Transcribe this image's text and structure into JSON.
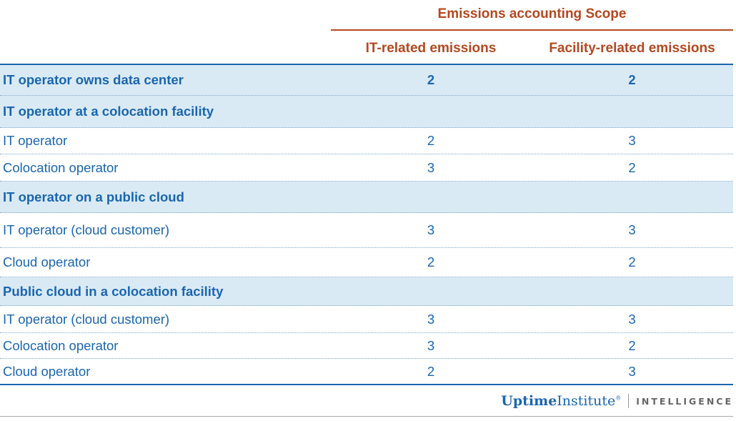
{
  "header": {
    "super": "Emissions accounting Scope",
    "col1": "IT-related emissions",
    "col2": "Facility-related emissions"
  },
  "rows": [
    {
      "label": "IT operator owns data center",
      "v1": "2",
      "v2": "2",
      "group": true
    },
    {
      "label": "IT operator at a colocation facility",
      "v1": "",
      "v2": "",
      "group": true
    },
    {
      "label": "IT operator",
      "v1": "2",
      "v2": "3",
      "group": false
    },
    {
      "label": "Colocation operator",
      "v1": "3",
      "v2": "2",
      "group": false
    },
    {
      "label": "IT operator on a public cloud",
      "v1": "",
      "v2": "",
      "group": true
    },
    {
      "label": "IT operator (cloud customer)",
      "v1": "3",
      "v2": "3",
      "group": false
    },
    {
      "label": "Cloud operator",
      "v1": "2",
      "v2": "2",
      "group": false
    },
    {
      "label": "Public cloud in a colocation facility",
      "v1": "",
      "v2": "",
      "group": true
    },
    {
      "label": "IT operator (cloud customer)",
      "v1": "3",
      "v2": "3",
      "group": false
    },
    {
      "label": "Colocation operator",
      "v1": "3",
      "v2": "2",
      "group": false
    },
    {
      "label": "Cloud operator",
      "v1": "2",
      "v2": "3",
      "group": false
    }
  ],
  "footer": {
    "brand_bold": "Uptime",
    "brand_regular": "Institute",
    "brand_mark": "®",
    "product": "INTELLIGENCE"
  },
  "colors": {
    "header_text": "#b5481f",
    "body_text": "#1a66b0",
    "group_bg": "#daeaf5"
  }
}
